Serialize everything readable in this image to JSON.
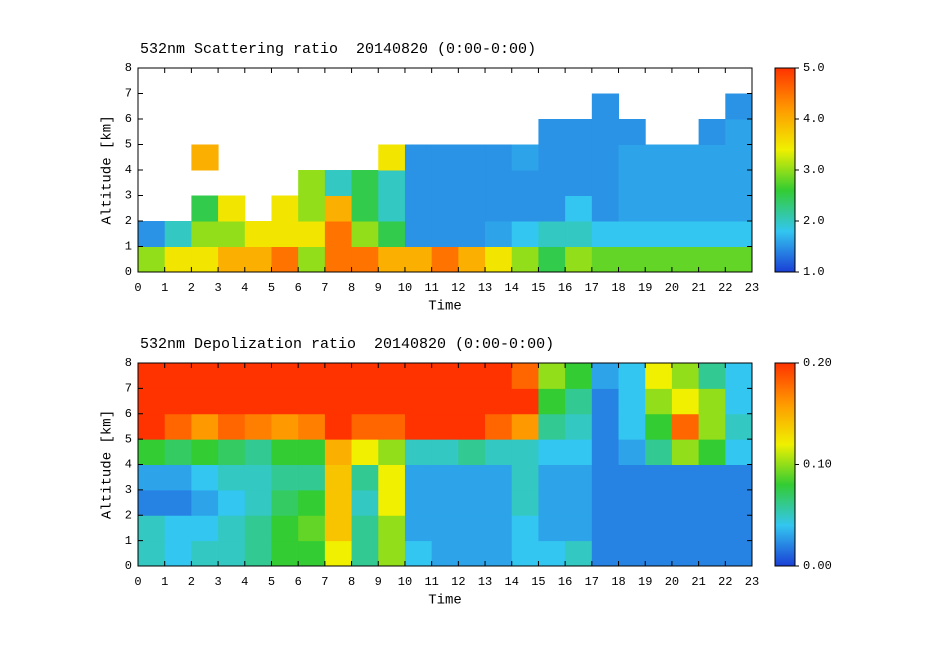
{
  "chart_data": [
    {
      "type": "heatmap",
      "title": "532nm Scattering ratio  20140820 (0:00-0:00)",
      "x_label": "Time",
      "y_label": "Altitude [km]",
      "xlim": [
        0,
        23
      ],
      "xticks": [
        0,
        1,
        2,
        3,
        4,
        5,
        6,
        7,
        8,
        9,
        10,
        11,
        12,
        13,
        14,
        15,
        16,
        17,
        18,
        19,
        20,
        21,
        22,
        23
      ],
      "ylim": [
        0,
        8
      ],
      "yticks": [
        0,
        1,
        2,
        3,
        4,
        5,
        6,
        7,
        8
      ],
      "zlim": [
        1,
        5
      ],
      "zticks": [
        {
          "value": 1,
          "label": "1.0"
        },
        {
          "value": 2,
          "label": "2.0"
        },
        {
          "value": 3,
          "label": "3.0"
        },
        {
          "value": 4,
          "label": "4.0"
        },
        {
          "value": 5,
          "label": "5.0"
        }
      ],
      "colormap": [
        "#1a3fd6",
        "#33c6f0",
        "#33cc33",
        "#f0f000",
        "#ff9900",
        "#ff3300"
      ],
      "z": [
        [
          3.0,
          3.5,
          3.5,
          4.0,
          4.0,
          4.5,
          3.0,
          4.5,
          4.5,
          4.0,
          4.0,
          4.5,
          4.0,
          3.5,
          3.0,
          2.5,
          3.0,
          2.8,
          2.8,
          2.8,
          2.8,
          2.8,
          2.8
        ],
        [
          1.5,
          2.0,
          3.0,
          3.0,
          3.5,
          3.5,
          3.5,
          4.5,
          3.0,
          2.5,
          1.5,
          1.5,
          1.5,
          1.6,
          1.8,
          2.0,
          2.0,
          1.8,
          1.8,
          1.8,
          1.8,
          1.8,
          1.8
        ],
        [
          null,
          null,
          2.5,
          3.5,
          null,
          3.5,
          3.0,
          4.0,
          2.5,
          2.0,
          1.5,
          1.5,
          1.5,
          1.5,
          1.5,
          1.5,
          1.8,
          1.5,
          1.6,
          1.6,
          1.6,
          1.6,
          1.6
        ],
        [
          null,
          null,
          null,
          null,
          null,
          null,
          3.0,
          2.0,
          2.5,
          2.0,
          1.5,
          1.5,
          1.5,
          1.5,
          1.5,
          1.5,
          1.5,
          1.5,
          1.6,
          1.6,
          1.6,
          1.6,
          1.6
        ],
        [
          null,
          null,
          4.0,
          null,
          null,
          null,
          null,
          null,
          null,
          3.5,
          1.5,
          1.5,
          1.5,
          1.5,
          1.6,
          1.5,
          1.5,
          1.5,
          1.6,
          1.6,
          1.6,
          1.6,
          1.6
        ],
        [
          null,
          null,
          null,
          null,
          null,
          null,
          null,
          null,
          null,
          null,
          null,
          null,
          null,
          null,
          null,
          1.5,
          1.5,
          1.5,
          1.5,
          null,
          null,
          1.5,
          1.6
        ],
        [
          null,
          null,
          null,
          null,
          null,
          null,
          null,
          null,
          null,
          null,
          null,
          null,
          null,
          null,
          null,
          null,
          null,
          1.5,
          null,
          null,
          null,
          null,
          1.5
        ],
        [
          null,
          null,
          null,
          null,
          null,
          null,
          null,
          null,
          null,
          null,
          null,
          null,
          null,
          null,
          null,
          null,
          null,
          null,
          null,
          null,
          null,
          null,
          null
        ]
      ]
    },
    {
      "type": "heatmap",
      "title": "532nm Depolization ratio  20140820 (0:00-0:00)",
      "x_label": "Time",
      "y_label": "Altitude [km]",
      "xlim": [
        0,
        23
      ],
      "xticks": [
        0,
        1,
        2,
        3,
        4,
        5,
        6,
        7,
        8,
        9,
        10,
        11,
        12,
        13,
        14,
        15,
        16,
        17,
        18,
        19,
        20,
        21,
        22,
        23
      ],
      "ylim": [
        0,
        8
      ],
      "yticks": [
        0,
        1,
        2,
        3,
        4,
        5,
        6,
        7,
        8
      ],
      "zlim": [
        0,
        0.2
      ],
      "zticks": [
        {
          "value": 0,
          "label": "0.00"
        },
        {
          "value": 0.1,
          "label": "0.10"
        },
        {
          "value": 0.2,
          "label": "0.20"
        }
      ],
      "colormap": [
        "#1a3fd6",
        "#33c6f0",
        "#33cc33",
        "#f0f000",
        "#ff9900",
        "#ff3300"
      ],
      "z": [
        [
          0.05,
          0.04,
          0.05,
          0.05,
          0.06,
          0.08,
          0.08,
          0.12,
          0.06,
          0.1,
          0.04,
          0.03,
          0.03,
          0.03,
          0.04,
          0.04,
          0.05,
          0.02,
          0.02,
          0.02,
          0.02,
          0.02,
          0.02
        ],
        [
          0.05,
          0.04,
          0.04,
          0.05,
          0.06,
          0.08,
          0.09,
          0.14,
          0.06,
          0.1,
          0.03,
          0.03,
          0.03,
          0.03,
          0.04,
          0.03,
          0.03,
          0.02,
          0.02,
          0.02,
          0.02,
          0.02,
          0.02
        ],
        [
          0.02,
          0.02,
          0.03,
          0.04,
          0.05,
          0.07,
          0.08,
          0.14,
          0.05,
          0.12,
          0.03,
          0.03,
          0.03,
          0.03,
          0.05,
          0.03,
          0.03,
          0.02,
          0.02,
          0.02,
          0.02,
          0.02,
          0.02
        ],
        [
          0.03,
          0.03,
          0.04,
          0.05,
          0.05,
          0.06,
          0.06,
          0.14,
          0.06,
          0.12,
          0.03,
          0.03,
          0.03,
          0.03,
          0.05,
          0.03,
          0.03,
          0.02,
          0.02,
          0.02,
          0.02,
          0.02,
          0.02
        ],
        [
          0.08,
          0.07,
          0.08,
          0.07,
          0.06,
          0.08,
          0.08,
          0.15,
          0.12,
          0.1,
          0.05,
          0.05,
          0.06,
          0.05,
          0.05,
          0.04,
          0.04,
          0.02,
          0.03,
          0.06,
          0.1,
          0.08,
          0.04
        ],
        [
          0.2,
          0.18,
          0.16,
          0.18,
          0.17,
          0.16,
          0.17,
          0.2,
          0.18,
          0.18,
          0.2,
          0.2,
          0.2,
          0.18,
          0.16,
          0.06,
          0.05,
          0.02,
          0.04,
          0.08,
          0.18,
          0.1,
          0.05
        ],
        [
          0.2,
          0.2,
          0.2,
          0.2,
          0.2,
          0.2,
          0.2,
          0.2,
          0.2,
          0.2,
          0.2,
          0.2,
          0.2,
          0.2,
          0.2,
          0.08,
          0.06,
          0.02,
          0.04,
          0.1,
          0.12,
          0.1,
          0.04
        ],
        [
          0.2,
          0.2,
          0.2,
          0.2,
          0.2,
          0.2,
          0.2,
          0.2,
          0.2,
          0.2,
          0.2,
          0.2,
          0.2,
          0.2,
          0.18,
          0.1,
          0.08,
          0.03,
          0.04,
          0.12,
          0.1,
          0.06,
          0.04
        ]
      ]
    }
  ]
}
